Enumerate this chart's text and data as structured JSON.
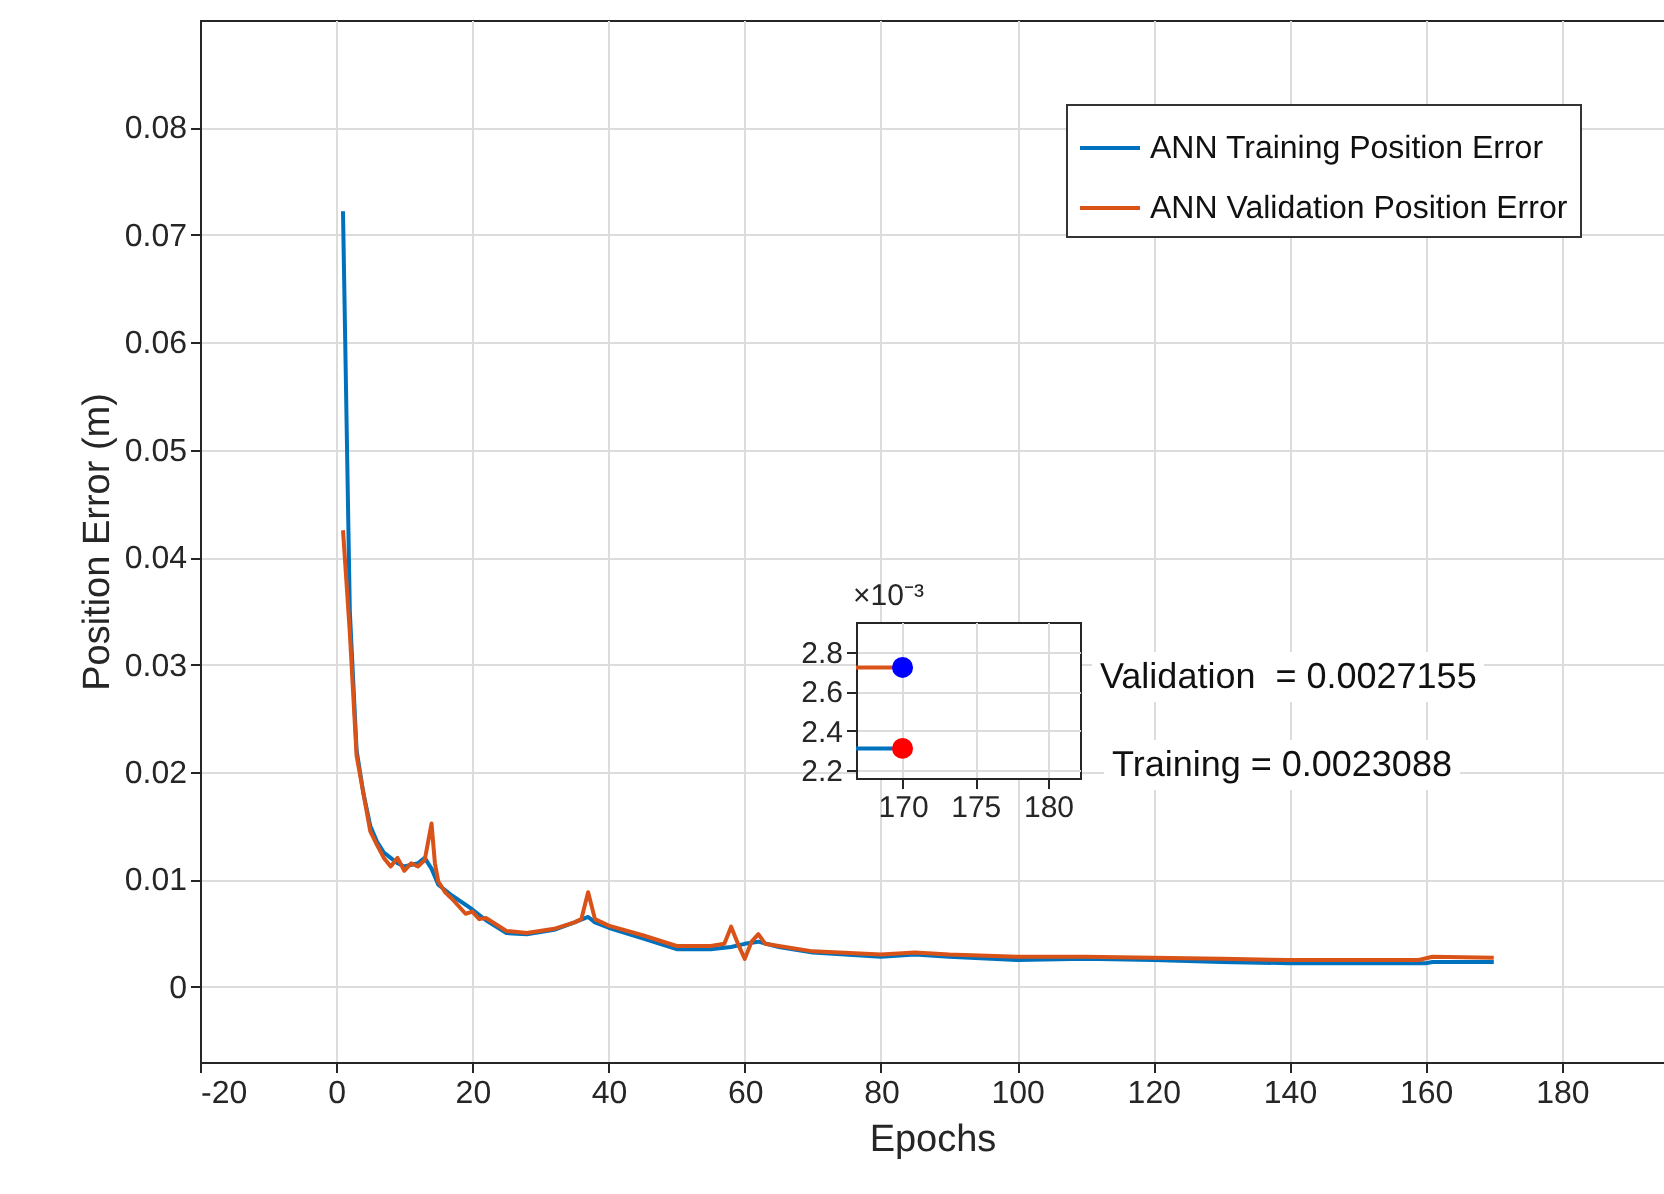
{
  "chart_data": [
    {
      "type": "line",
      "xlabel": "Epochs",
      "ylabel": "Position Error (m)",
      "xlim": [
        -20,
        195
      ],
      "xticks": [
        -20,
        0,
        20,
        40,
        60,
        80,
        100,
        120,
        140,
        160,
        180
      ],
      "ylim": [
        -0.007,
        0.09
      ],
      "yticks": [
        0,
        0.01,
        0.02,
        0.03,
        0.04,
        0.05,
        0.06,
        0.07,
        0.08
      ],
      "grid": true,
      "legend": "top right",
      "marker": "none",
      "annotations": [
        "Validation  = 0.0027155",
        "Training = 0.0023088"
      ],
      "series": [
        {
          "name": "ANN Training Position Error",
          "color": "#0072bd",
          "x": [
            1,
            2,
            3,
            4,
            5,
            6,
            7,
            8,
            9,
            10,
            12,
            13,
            14,
            15,
            17,
            20,
            22,
            25,
            28,
            32,
            35,
            37,
            38,
            40,
            45,
            50,
            55,
            58,
            60,
            62,
            65,
            70,
            80,
            85,
            90,
            100,
            110,
            120,
            130,
            140,
            150,
            160,
            161,
            170
          ],
          "values": [
            0.0722,
            0.035,
            0.022,
            0.018,
            0.015,
            0.0135,
            0.0125,
            0.012,
            0.0115,
            0.0112,
            0.0115,
            0.012,
            0.011,
            0.0095,
            0.0085,
            0.0072,
            0.0062,
            0.005,
            0.0049,
            0.0053,
            0.006,
            0.0065,
            0.006,
            0.0055,
            0.0045,
            0.0035,
            0.0035,
            0.0037,
            0.004,
            0.0042,
            0.0037,
            0.0032,
            0.0028,
            0.003,
            0.0028,
            0.0025,
            0.0026,
            0.0025,
            0.0023,
            0.0022,
            0.0022,
            0.0022,
            0.0023,
            0.0023
          ]
        },
        {
          "name": "ANN Validation Position Error",
          "color": "#d95319",
          "x": [
            1,
            2,
            3,
            4,
            5,
            6,
            7,
            8,
            9,
            10,
            11,
            12,
            13,
            14,
            14.5,
            15,
            16,
            17,
            18,
            19,
            20,
            21,
            22,
            25,
            28,
            32,
            35,
            36,
            37,
            38,
            40,
            45,
            50,
            55,
            57,
            58,
            59,
            60,
            61,
            62,
            63,
            65,
            70,
            80,
            85,
            90,
            100,
            110,
            120,
            130,
            140,
            150,
            159,
            161,
            170
          ],
          "values": [
            0.0425,
            0.033,
            0.0215,
            0.018,
            0.0145,
            0.0132,
            0.012,
            0.0112,
            0.012,
            0.0108,
            0.0115,
            0.0112,
            0.0118,
            0.0152,
            0.0115,
            0.0098,
            0.0088,
            0.0082,
            0.0075,
            0.0068,
            0.007,
            0.0063,
            0.0064,
            0.0052,
            0.005,
            0.0054,
            0.006,
            0.0063,
            0.0088,
            0.0063,
            0.0057,
            0.0048,
            0.0038,
            0.0038,
            0.004,
            0.0056,
            0.004,
            0.0026,
            0.0042,
            0.0049,
            0.004,
            0.0038,
            0.0033,
            0.003,
            0.0032,
            0.003,
            0.0028,
            0.0028,
            0.0027,
            0.0026,
            0.0025,
            0.0025,
            0.0025,
            0.0028,
            0.0027
          ]
        }
      ]
    },
    {
      "type": "line",
      "ylabel": "×10⁻³",
      "xlim": [
        166.8,
        182.2
      ],
      "xticks": [
        170,
        175,
        180
      ],
      "ylim": [
        2.16,
        2.95
      ],
      "yticks": [
        2.2,
        2.4,
        2.6,
        2.8
      ],
      "grid": true,
      "marker": "none",
      "series": [
        {
          "color": "#d95319",
          "x": [
            166.8,
            170
          ],
          "values": [
            2.72,
            2.72
          ]
        },
        {
          "type": "scatter",
          "marker": "circle",
          "color": "#0000ff",
          "x": [
            170
          ],
          "values": [
            2.72
          ]
        },
        {
          "color": "#0072bd",
          "x": [
            166.8,
            170
          ],
          "values": [
            2.31,
            2.31
          ]
        },
        {
          "type": "scatter",
          "marker": "circle",
          "color": "#ff0000",
          "x": [
            170
          ],
          "values": [
            2.31
          ]
        }
      ]
    }
  ]
}
